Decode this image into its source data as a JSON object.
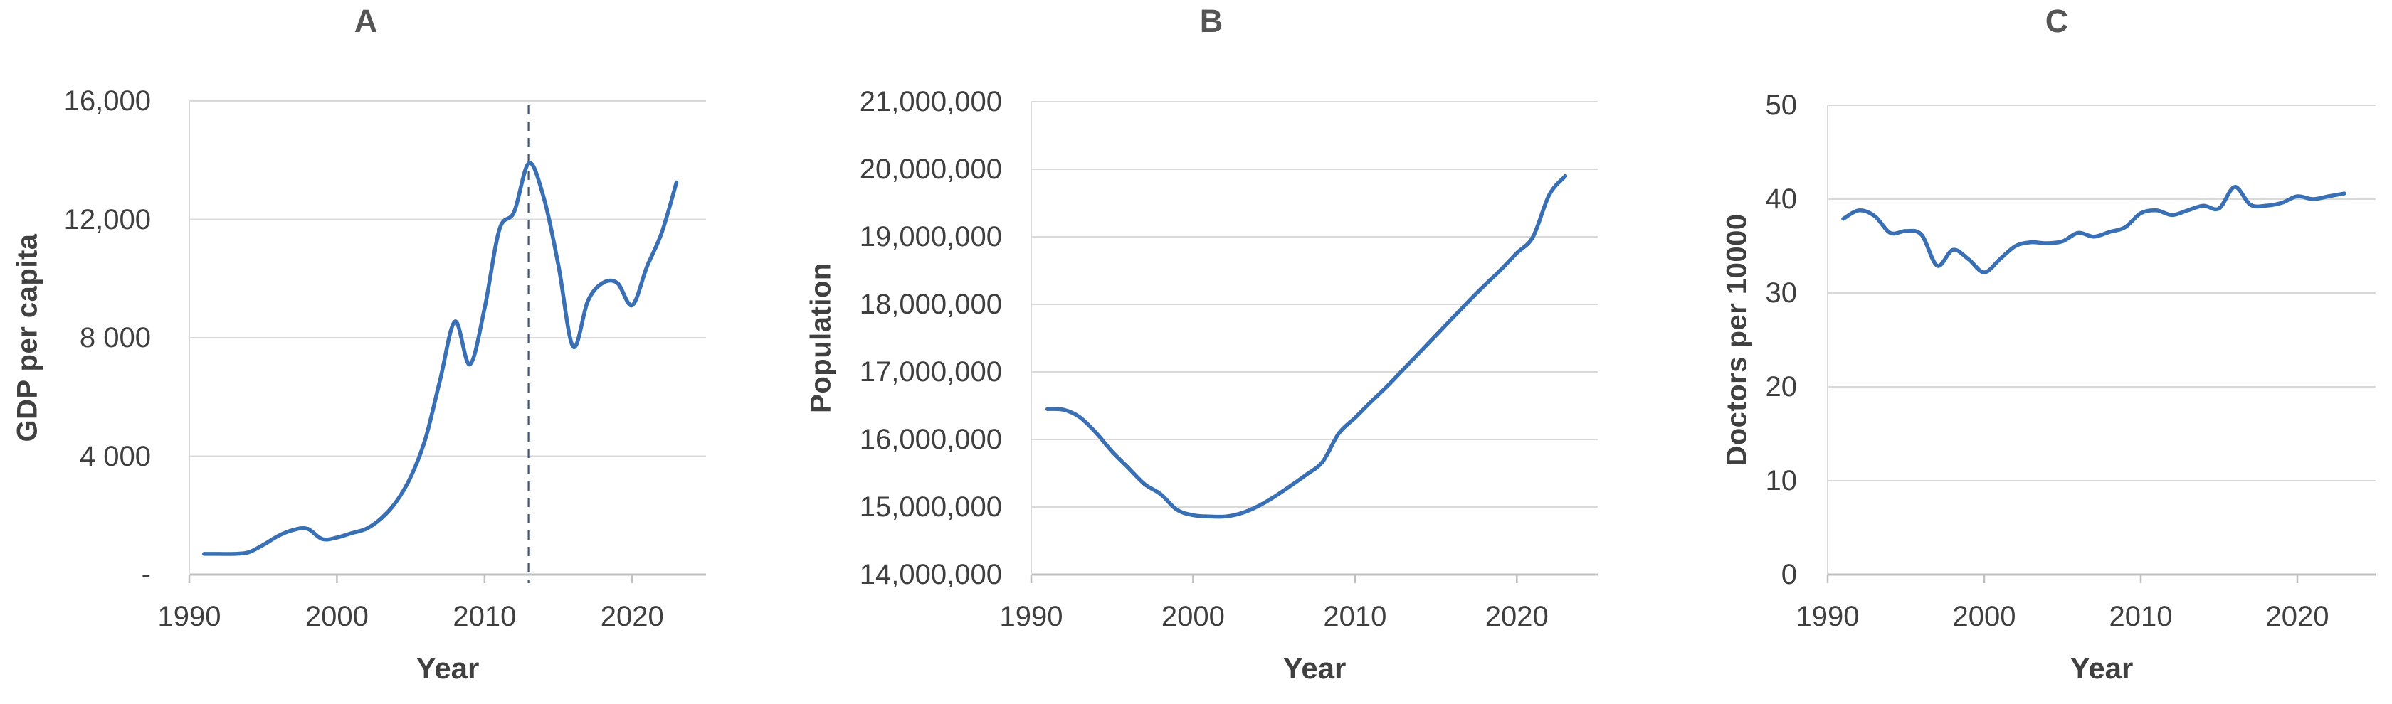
{
  "colors": {
    "series_line": "#396FB4",
    "dashed_marker_line": "#44546A",
    "gridline": "#D9D9D9",
    "axis_line": "#BFBFBF",
    "tick_text": "#3F3F3F",
    "title_text": "#555555"
  },
  "chart_data": [
    {
      "type": "line",
      "title": "A",
      "xlabel": "Year",
      "ylabel": "GDP per capita",
      "x_range": [
        1990,
        2025
      ],
      "x_ticks": [
        1990,
        2000,
        2010,
        2020
      ],
      "ylim": [
        0,
        16000
      ],
      "grid": true,
      "legend": "none",
      "y_ticks": [
        {
          "value": 16000,
          "label": "16,000"
        },
        {
          "value": 12000,
          "label": "12,000"
        },
        {
          "value": 8000,
          "label": "8 000"
        },
        {
          "value": 4000,
          "label": "4 000"
        },
        {
          "value": 0,
          "label": "-"
        }
      ],
      "years": [
        1991,
        1992,
        1993,
        1994,
        1995,
        1996,
        1997,
        1998,
        1999,
        2000,
        2001,
        2002,
        2003,
        2004,
        2005,
        2006,
        2007,
        2008,
        2009,
        2010,
        2011,
        2012,
        2013,
        2014,
        2015,
        2016,
        2017,
        2018,
        2019,
        2020,
        2021,
        2022,
        2023
      ],
      "values": [
        700,
        700,
        700,
        750,
        1000,
        1300,
        1500,
        1550,
        1200,
        1250,
        1400,
        1550,
        1900,
        2450,
        3300,
        4600,
        6600,
        8550,
        7100,
        9000,
        11650,
        12250,
        13900,
        12750,
        10450,
        7700,
        9250,
        9850,
        9850,
        9100,
        10400,
        11550,
        13250
      ],
      "annotations": [
        {
          "type": "vline",
          "x": 2013,
          "style": "dashed"
        }
      ]
    },
    {
      "type": "line",
      "title": "B",
      "xlabel": "Year",
      "ylabel": "Population",
      "x_range": [
        1990,
        2025
      ],
      "x_ticks": [
        1990,
        2000,
        2010,
        2020
      ],
      "ylim": [
        14000000,
        21000000
      ],
      "grid": true,
      "legend": "none",
      "y_ticks": [
        {
          "value": 21000000,
          "label": "21,000,000"
        },
        {
          "value": 20000000,
          "label": "20,000,000"
        },
        {
          "value": 19000000,
          "label": "19,000,000"
        },
        {
          "value": 18000000,
          "label": "18,000,000"
        },
        {
          "value": 17000000,
          "label": "17,000,000"
        },
        {
          "value": 16000000,
          "label": "16,000,000"
        },
        {
          "value": 15000000,
          "label": "15,000,000"
        },
        {
          "value": 14000000,
          "label": "14,000,000"
        }
      ],
      "years": [
        1991,
        1992,
        1993,
        1994,
        1995,
        1996,
        1997,
        1998,
        1999,
        2000,
        2001,
        2002,
        2003,
        2004,
        2005,
        2006,
        2007,
        2008,
        2009,
        2010,
        2011,
        2012,
        2013,
        2014,
        2015,
        2016,
        2017,
        2018,
        2019,
        2020,
        2021,
        2022,
        2023
      ],
      "values": [
        16450000,
        16440000,
        16330000,
        16100000,
        15820000,
        15580000,
        15340000,
        15190000,
        14960000,
        14880000,
        14860000,
        14860000,
        14910000,
        15010000,
        15150000,
        15310000,
        15480000,
        15670000,
        16090000,
        16320000,
        16560000,
        16790000,
        17040000,
        17290000,
        17540000,
        17790000,
        18040000,
        18280000,
        18510000,
        18760000,
        19000000,
        19620000,
        19900000
      ],
      "annotations": []
    },
    {
      "type": "line",
      "title": "C",
      "xlabel": "Year",
      "ylabel": "Doctors per 10000",
      "x_range": [
        1990,
        2025
      ],
      "x_ticks": [
        1990,
        2000,
        2010,
        2020
      ],
      "ylim": [
        0,
        50
      ],
      "grid": true,
      "legend": "none",
      "y_ticks": [
        {
          "value": 50,
          "label": "50"
        },
        {
          "value": 40,
          "label": "40"
        },
        {
          "value": 30,
          "label": "30"
        },
        {
          "value": 20,
          "label": "20"
        },
        {
          "value": 10,
          "label": "10"
        },
        {
          "value": 0,
          "label": "0"
        }
      ],
      "years": [
        1991,
        1992,
        1993,
        1994,
        1995,
        1996,
        1997,
        1998,
        1999,
        2000,
        2001,
        2002,
        2003,
        2004,
        2005,
        2006,
        2007,
        2008,
        2009,
        2010,
        2011,
        2012,
        2013,
        2014,
        2015,
        2016,
        2017,
        2018,
        2019,
        2020,
        2021,
        2022,
        2023
      ],
      "values": [
        37.9,
        38.8,
        38.2,
        36.4,
        36.6,
        36.2,
        32.9,
        34.6,
        33.6,
        32.2,
        33.6,
        35.0,
        35.4,
        35.3,
        35.5,
        36.4,
        36.0,
        36.5,
        37.0,
        38.5,
        38.8,
        38.3,
        38.8,
        39.3,
        39.0,
        41.3,
        39.4,
        39.3,
        39.6,
        40.3,
        40.0,
        40.3,
        40.6
      ],
      "annotations": []
    }
  ]
}
